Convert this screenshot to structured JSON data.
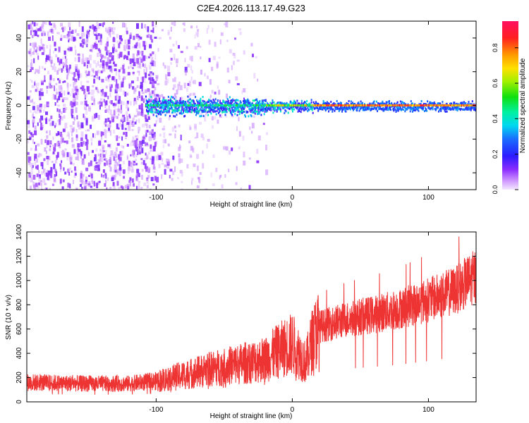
{
  "title": "C2E4.2026.113.17.49.G23",
  "colors": {
    "snr_line": "#ee3333",
    "background": "#ffffff"
  },
  "chart_data": [
    {
      "type": "heatmap",
      "title": "C2E4.2026.113.17.49.G23",
      "xlabel": "Height of straight line (km)",
      "ylabel": "Frequency (Hz)",
      "xlim": [
        -195,
        135
      ],
      "ylim": [
        -50,
        50
      ],
      "x_ticks": [
        -100,
        0,
        100
      ],
      "y_ticks": [
        -40,
        -20,
        0,
        20,
        40
      ],
      "colorbar": {
        "label": "Normalized spectral amplitude",
        "range": [
          0,
          0.95
        ],
        "ticks": [
          0.0,
          0.2,
          0.4,
          0.6,
          0.8
        ]
      },
      "features": {
        "noise_region_x": [
          -195,
          -100
        ],
        "sparse_noise_x": [
          -100,
          -15
        ],
        "main_line_frequency_hz": 0,
        "main_line_start_x": -108,
        "strong_line_start_x": 15
      }
    },
    {
      "type": "line",
      "xlabel": "Height of straight line (km)",
      "ylabel": "SNR (10 * v/v)",
      "xlim": [
        -195,
        135
      ],
      "ylim": [
        0,
        1400
      ],
      "x_ticks": [
        -100,
        0,
        100
      ],
      "y_ticks": [
        0,
        200,
        400,
        600,
        800,
        1000,
        1200,
        1400
      ],
      "trend": {
        "x": [
          -195,
          -150,
          -120,
          -100,
          -80,
          -60,
          -40,
          -20,
          -10,
          0,
          5,
          10,
          15,
          20,
          40,
          60,
          80,
          100,
          120,
          135
        ],
        "y": [
          160,
          150,
          150,
          170,
          220,
          270,
          310,
          350,
          420,
          480,
          400,
          320,
          520,
          620,
          680,
          720,
          770,
          840,
          920,
          1040
        ]
      }
    }
  ]
}
